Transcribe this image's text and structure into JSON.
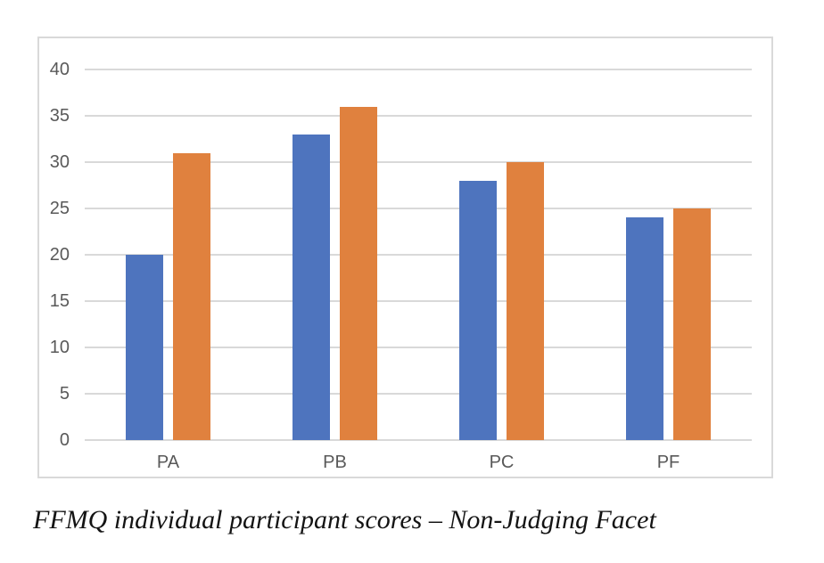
{
  "chart_data": {
    "type": "bar",
    "categories": [
      "PA",
      "PB",
      "PC",
      "PF"
    ],
    "series": [
      {
        "color_name": "blue",
        "color": "#4E74BE",
        "values": [
          20,
          33,
          28,
          24
        ]
      },
      {
        "color_name": "orange",
        "color": "#E0813E",
        "values": [
          31,
          36,
          30,
          25
        ]
      }
    ],
    "title": "",
    "xlabel": "",
    "ylabel": "",
    "ylim": [
      0,
      40
    ],
    "yticks": [
      0,
      5,
      10,
      15,
      20,
      25,
      30,
      35,
      40
    ],
    "grid": true,
    "legend_position": "none",
    "gridline_color": "#D9D9D9",
    "frame_border_color": "#D9D9D9",
    "axis_text_color": "#595959",
    "background_color": "#ffffff"
  },
  "caption": {
    "text": "FFMQ individual participant scores – Non-Judging Facet"
  }
}
